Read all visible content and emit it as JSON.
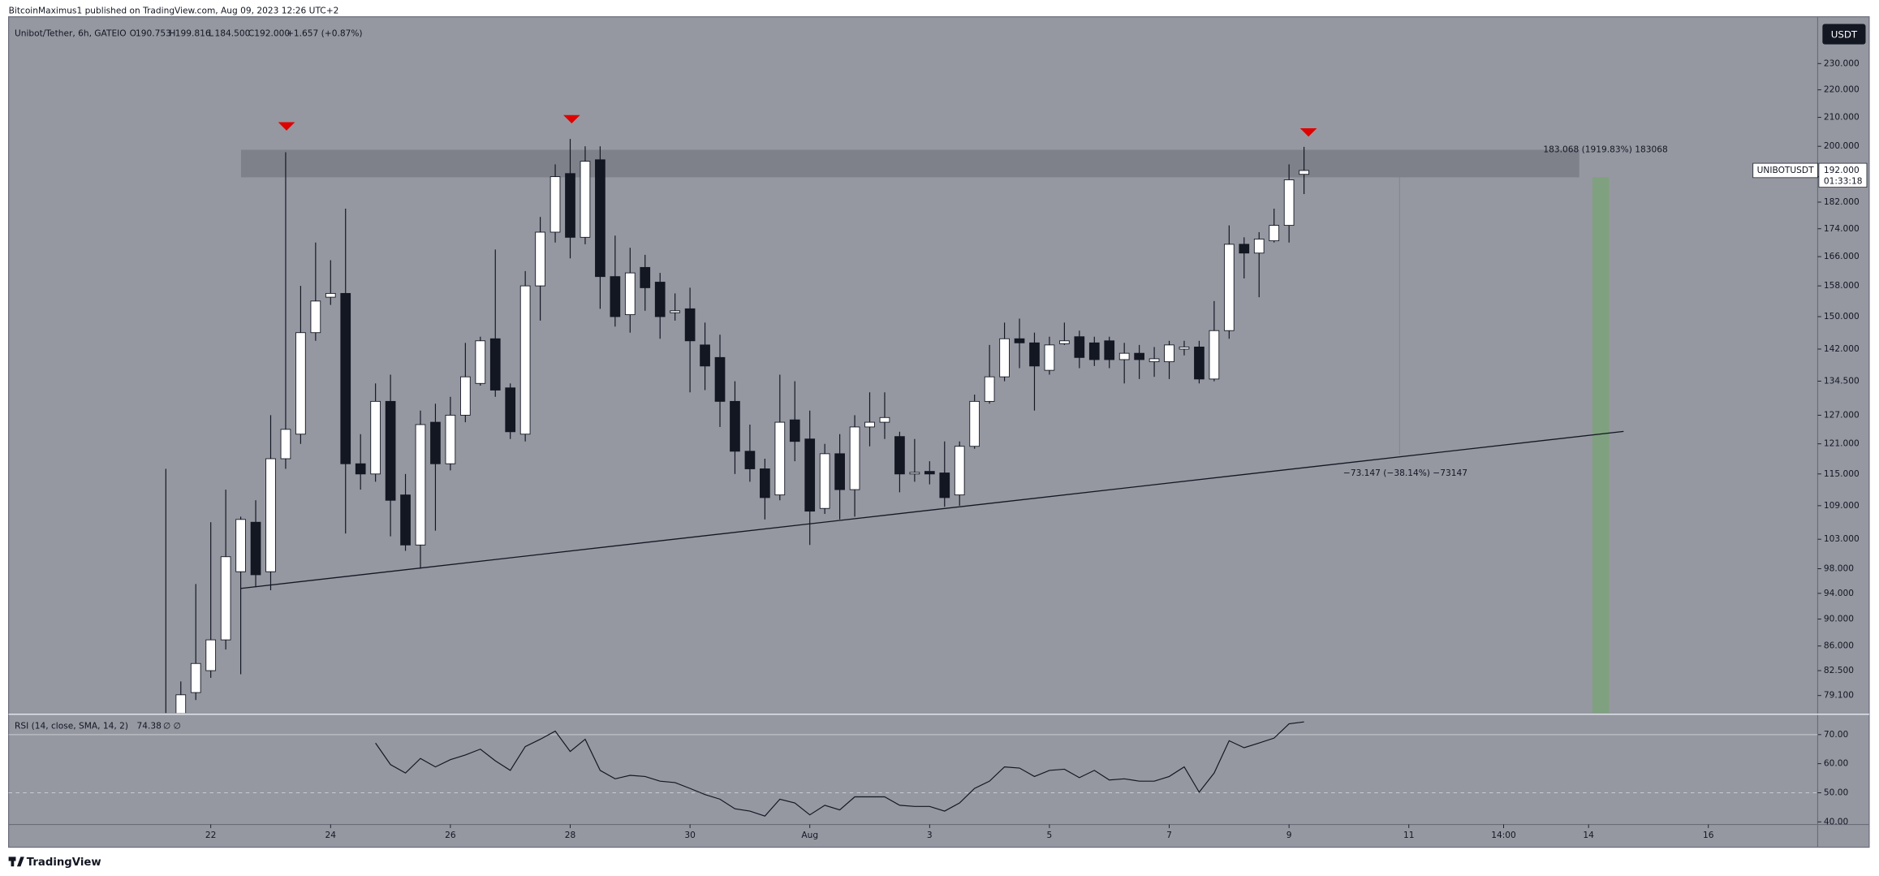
{
  "publisher": "BitcoinMaximus1 published on TradingView.com, Aug 09, 2023 12:26 UTC+2",
  "footer": "TradingView",
  "chart_data": {
    "type": "candlestick",
    "title": "Unibot/Tether, 6h, GATEIO",
    "ohlc": [
      {
        "label": "O",
        "value": "190.753"
      },
      {
        "label": "H",
        "value": "199.816"
      },
      {
        "label": "L",
        "value": "184.500"
      },
      {
        "label": "C",
        "value": "192.000"
      }
    ],
    "change": "+1.657 (+0.87%)",
    "currency": "USDT",
    "symbol_label": "UNIBOTUSDT",
    "price_label": "192.000",
    "countdown": "01:33:18",
    "annotations": [
      "183.068 (1919.83%) 183068",
      "−73.147 (−38.14%) −73147"
    ],
    "log_scale": true,
    "ylim": [
      76.8,
      248.9
    ],
    "yticks": [
      {
        "value": 230,
        "label": "230.000"
      },
      {
        "value": 220,
        "label": "220.000"
      },
      {
        "value": 210,
        "label": "210.000"
      },
      {
        "value": 200,
        "label": "200.000"
      },
      {
        "value": 190,
        "label": "190.000"
      },
      {
        "value": 182,
        "label": "182.000"
      },
      {
        "value": 174,
        "label": "174.000"
      },
      {
        "value": 166,
        "label": "166.000"
      },
      {
        "value": 158,
        "label": "158.000"
      },
      {
        "value": 150,
        "label": "150.000"
      },
      {
        "value": 142,
        "label": "142.000"
      },
      {
        "value": 134.5,
        "label": "134.500"
      },
      {
        "value": 127,
        "label": "127.000"
      },
      {
        "value": 121,
        "label": "121.000"
      },
      {
        "value": 115,
        "label": "115.000"
      },
      {
        "value": 109,
        "label": "109.000"
      },
      {
        "value": 103,
        "label": "103.000"
      },
      {
        "value": 98,
        "label": "98.000"
      },
      {
        "value": 94,
        "label": "94.000"
      },
      {
        "value": 90,
        "label": "90.000"
      },
      {
        "value": 86,
        "label": "86.000"
      },
      {
        "value": 82.5,
        "label": "82.500"
      },
      {
        "value": 79.1,
        "label": "79.100"
      }
    ],
    "xlim": [
      -10.5,
      110.3
    ],
    "xticks": [
      {
        "value": 3,
        "label": "22"
      },
      {
        "value": 11,
        "label": "24"
      },
      {
        "value": 19,
        "label": "26"
      },
      {
        "value": 27,
        "label": "28"
      },
      {
        "value": 35,
        "label": "30"
      },
      {
        "value": 43,
        "label": "Aug"
      },
      {
        "value": 51,
        "label": "3"
      },
      {
        "value": 59,
        "label": "5"
      },
      {
        "value": 67,
        "label": "7"
      },
      {
        "value": 75,
        "label": "9"
      },
      {
        "value": 83,
        "label": "11"
      },
      {
        "value": 89.33,
        "label": "14:00"
      },
      {
        "value": 95,
        "label": "14"
      },
      {
        "value": 103,
        "label": "16"
      }
    ],
    "up_color": "#ffffff",
    "down_color": "#131722",
    "candles": [
      {
        "open": 74,
        "high": 116,
        "low": 70,
        "close": 76
      },
      {
        "open": 76,
        "high": 81,
        "low": 75,
        "close": 79.2
      },
      {
        "open": 79.5,
        "high": 95.5,
        "low": 78.5,
        "close": 83.5
      },
      {
        "open": 82.5,
        "high": 106,
        "low": 81.5,
        "close": 86.9
      },
      {
        "open": 86.9,
        "high": 112,
        "low": 85.5,
        "close": 100
      },
      {
        "open": 97.5,
        "high": 107,
        "low": 82,
        "close": 106.5
      },
      {
        "open": 106,
        "high": 110,
        "low": 95,
        "close": 97
      },
      {
        "open": 97.5,
        "high": 127,
        "low": 94.5,
        "close": 118
      },
      {
        "open": 118,
        "high": 198,
        "low": 116,
        "close": 124
      },
      {
        "open": 123,
        "high": 158,
        "low": 121,
        "close": 146
      },
      {
        "open": 146,
        "high": 170,
        "low": 144,
        "close": 154
      },
      {
        "open": 155,
        "high": 165,
        "low": 153,
        "close": 156
      },
      {
        "open": 156,
        "high": 180,
        "low": 104,
        "close": 117
      },
      {
        "open": 117,
        "high": 123,
        "low": 112,
        "close": 115
      },
      {
        "open": 115,
        "high": 134,
        "low": 113.5,
        "close": 130
      },
      {
        "open": 130,
        "high": 136,
        "low": 103.5,
        "close": 110
      },
      {
        "open": 111,
        "high": 115,
        "low": 101,
        "close": 102
      },
      {
        "open": 102,
        "high": 128,
        "low": 98,
        "close": 125
      },
      {
        "open": 125.5,
        "high": 129.5,
        "low": 104.5,
        "close": 117
      },
      {
        "open": 117,
        "high": 131,
        "low": 115.7,
        "close": 127
      },
      {
        "open": 127,
        "high": 143.5,
        "low": 125.5,
        "close": 135.5
      },
      {
        "open": 134,
        "high": 145,
        "low": 133.5,
        "close": 144
      },
      {
        "open": 144.5,
        "high": 168,
        "low": 131,
        "close": 132.5
      },
      {
        "open": 133,
        "high": 134,
        "low": 122,
        "close": 123.5
      },
      {
        "open": 123,
        "high": 162,
        "low": 121.5,
        "close": 158
      },
      {
        "open": 158,
        "high": 177.5,
        "low": 149,
        "close": 173
      },
      {
        "open": 173,
        "high": 194,
        "low": 170,
        "close": 190
      },
      {
        "open": 191,
        "high": 202.5,
        "low": 165.5,
        "close": 171.5
      },
      {
        "open": 171.5,
        "high": 200,
        "low": 169.5,
        "close": 195
      },
      {
        "open": 195.5,
        "high": 200,
        "low": 152,
        "close": 160.5
      },
      {
        "open": 160.5,
        "high": 172,
        "low": 147.5,
        "close": 150
      },
      {
        "open": 150.5,
        "high": 168.5,
        "low": 146,
        "close": 161.5
      },
      {
        "open": 163,
        "high": 166.5,
        "low": 151.5,
        "close": 157.5
      },
      {
        "open": 159,
        "high": 161.5,
        "low": 144.5,
        "close": 150
      },
      {
        "open": 151,
        "high": 156,
        "low": 149,
        "close": 151.5
      },
      {
        "open": 152,
        "high": 157.5,
        "low": 132,
        "close": 144
      },
      {
        "open": 143,
        "high": 148.5,
        "low": 132.5,
        "close": 138
      },
      {
        "open": 140,
        "high": 145.5,
        "low": 124.5,
        "close": 130
      },
      {
        "open": 130,
        "high": 134.5,
        "low": 115,
        "close": 119.5
      },
      {
        "open": 119.5,
        "high": 125,
        "low": 113.5,
        "close": 116
      },
      {
        "open": 116,
        "high": 118,
        "low": 106.5,
        "close": 110.5
      },
      {
        "open": 111,
        "high": 136,
        "low": 110,
        "close": 125.5
      },
      {
        "open": 126,
        "high": 134.5,
        "low": 117.5,
        "close": 121.5
      },
      {
        "open": 122,
        "high": 128,
        "low": 102,
        "close": 108
      },
      {
        "open": 108.5,
        "high": 121,
        "low": 107.5,
        "close": 119
      },
      {
        "open": 119,
        "high": 123,
        "low": 106.5,
        "close": 112
      },
      {
        "open": 112,
        "high": 127,
        "low": 107,
        "close": 124.5
      },
      {
        "open": 124.5,
        "high": 132,
        "low": 120.5,
        "close": 125.5
      },
      {
        "open": 125.5,
        "high": 132,
        "low": 122,
        "close": 126.5
      },
      {
        "open": 122.5,
        "high": 123.5,
        "low": 111.5,
        "close": 115
      },
      {
        "open": 115,
        "high": 122,
        "low": 113.5,
        "close": 115.3
      },
      {
        "open": 115.5,
        "high": 117.5,
        "low": 113,
        "close": 115
      },
      {
        "open": 115.2,
        "high": 121.5,
        "low": 108.8,
        "close": 110.5
      },
      {
        "open": 111,
        "high": 121.5,
        "low": 109,
        "close": 120.5
      },
      {
        "open": 120.5,
        "high": 131.5,
        "low": 120,
        "close": 130
      },
      {
        "open": 130,
        "high": 143,
        "low": 129.5,
        "close": 135.5
      },
      {
        "open": 135.5,
        "high": 148.5,
        "low": 134.5,
        "close": 144.5
      },
      {
        "open": 144.5,
        "high": 149.5,
        "low": 137.5,
        "close": 143.5
      },
      {
        "open": 143.5,
        "high": 146,
        "low": 128,
        "close": 138
      },
      {
        "open": 137,
        "high": 145,
        "low": 136,
        "close": 143
      },
      {
        "open": 143.3,
        "high": 148.5,
        "low": 143,
        "close": 144
      },
      {
        "open": 145,
        "high": 146.5,
        "low": 137.5,
        "close": 140
      },
      {
        "open": 143.5,
        "high": 145,
        "low": 138,
        "close": 139.5
      },
      {
        "open": 144,
        "high": 145,
        "low": 137.5,
        "close": 139.5
      },
      {
        "open": 139.5,
        "high": 143.5,
        "low": 134,
        "close": 141
      },
      {
        "open": 141,
        "high": 143,
        "low": 135,
        "close": 139.5
      },
      {
        "open": 139,
        "high": 142.5,
        "low": 135.5,
        "close": 139.7
      },
      {
        "open": 139,
        "high": 144,
        "low": 135,
        "close": 143
      },
      {
        "open": 142,
        "high": 144,
        "low": 140.5,
        "close": 142.5
      },
      {
        "open": 142.5,
        "high": 144,
        "low": 134,
        "close": 135
      },
      {
        "open": 135,
        "high": 154,
        "low": 134.5,
        "close": 146.5
      },
      {
        "open": 146.5,
        "high": 175,
        "low": 144.5,
        "close": 169.5
      },
      {
        "open": 169.5,
        "high": 171.5,
        "low": 160,
        "close": 167
      },
      {
        "open": 167,
        "high": 173,
        "low": 155,
        "close": 171
      },
      {
        "open": 170.5,
        "high": 180,
        "low": 170,
        "close": 175
      },
      {
        "open": 175,
        "high": 194,
        "low": 170,
        "close": 189
      },
      {
        "open": 190.753,
        "high": 199.816,
        "low": 184.5,
        "close": 192
      }
    ],
    "rsi": {
      "label": "RSI (14, close, SMA, 14, 2)",
      "value_label": "74.38",
      "extra": "∅ ∅",
      "color": "#131722",
      "ylim": [
        39.1,
        76.6
      ],
      "yticks": [
        {
          "value": 70,
          "label": "70.00"
        },
        {
          "value": 60,
          "label": "60.00"
        },
        {
          "value": 50,
          "label": "50.00"
        },
        {
          "value": 40,
          "label": "40.00"
        }
      ],
      "levels": [
        70,
        50
      ],
      "values": [
        null,
        null,
        null,
        null,
        null,
        null,
        null,
        null,
        null,
        null,
        null,
        null,
        null,
        null,
        67.1,
        59.7,
        56.8,
        61.8,
        58.9,
        61.4,
        63,
        65,
        61,
        57.7,
        65.9,
        68.4,
        71.2,
        64.2,
        68.4,
        57.7,
        54.8,
        56,
        55.6,
        54,
        53.5,
        51.5,
        49.4,
        47.8,
        44.5,
        43.7,
        42,
        47.8,
        46.5,
        42.4,
        45.7,
        44.1,
        48.6,
        48.6,
        48.6,
        45.7,
        45.3,
        45.3,
        43.7,
        46.5,
        51.5,
        54,
        58.9,
        58.5,
        55.6,
        57.7,
        58.1,
        55.2,
        57.7,
        54.4,
        54.8,
        54,
        54,
        55.6,
        58.9,
        50.2,
        56.8,
        67.9,
        65.5,
        67.1,
        68.8,
        73.7,
        74.38
      ]
    }
  }
}
